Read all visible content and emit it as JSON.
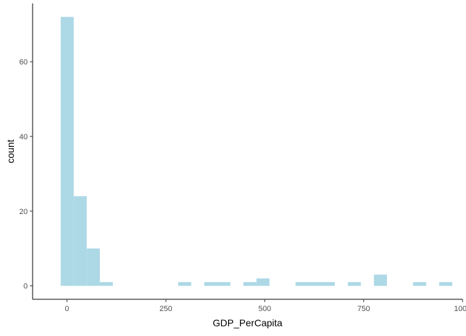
{
  "chart_data": {
    "type": "bar",
    "title": "",
    "xlabel": "GDP_PerCapita",
    "ylabel": "count",
    "xlim": [
      -87,
      1000
    ],
    "ylim": [
      -3.6,
      75.6
    ],
    "x_ticks": [
      0,
      250,
      500,
      750,
      1000
    ],
    "y_ticks": [
      0,
      20,
      40,
      60
    ],
    "grid": false,
    "bar_color": "#add8e6",
    "bin_width": 33,
    "bins": [
      {
        "x0": -16,
        "x1": 17,
        "count": 72
      },
      {
        "x0": 17,
        "x1": 50,
        "count": 24
      },
      {
        "x0": 50,
        "x1": 83,
        "count": 10
      },
      {
        "x0": 83,
        "x1": 116,
        "count": 1
      },
      {
        "x0": 281,
        "x1": 314,
        "count": 1
      },
      {
        "x0": 347,
        "x1": 380,
        "count": 1
      },
      {
        "x0": 380,
        "x1": 413,
        "count": 1
      },
      {
        "x0": 446,
        "x1": 479,
        "count": 1
      },
      {
        "x0": 479,
        "x1": 512,
        "count": 2
      },
      {
        "x0": 578,
        "x1": 611,
        "count": 1
      },
      {
        "x0": 611,
        "x1": 644,
        "count": 1
      },
      {
        "x0": 644,
        "x1": 677,
        "count": 1
      },
      {
        "x0": 710,
        "x1": 743,
        "count": 1
      },
      {
        "x0": 776,
        "x1": 809,
        "count": 3
      },
      {
        "x0": 875,
        "x1": 908,
        "count": 1
      },
      {
        "x0": 941,
        "x1": 974,
        "count": 1
      }
    ]
  }
}
